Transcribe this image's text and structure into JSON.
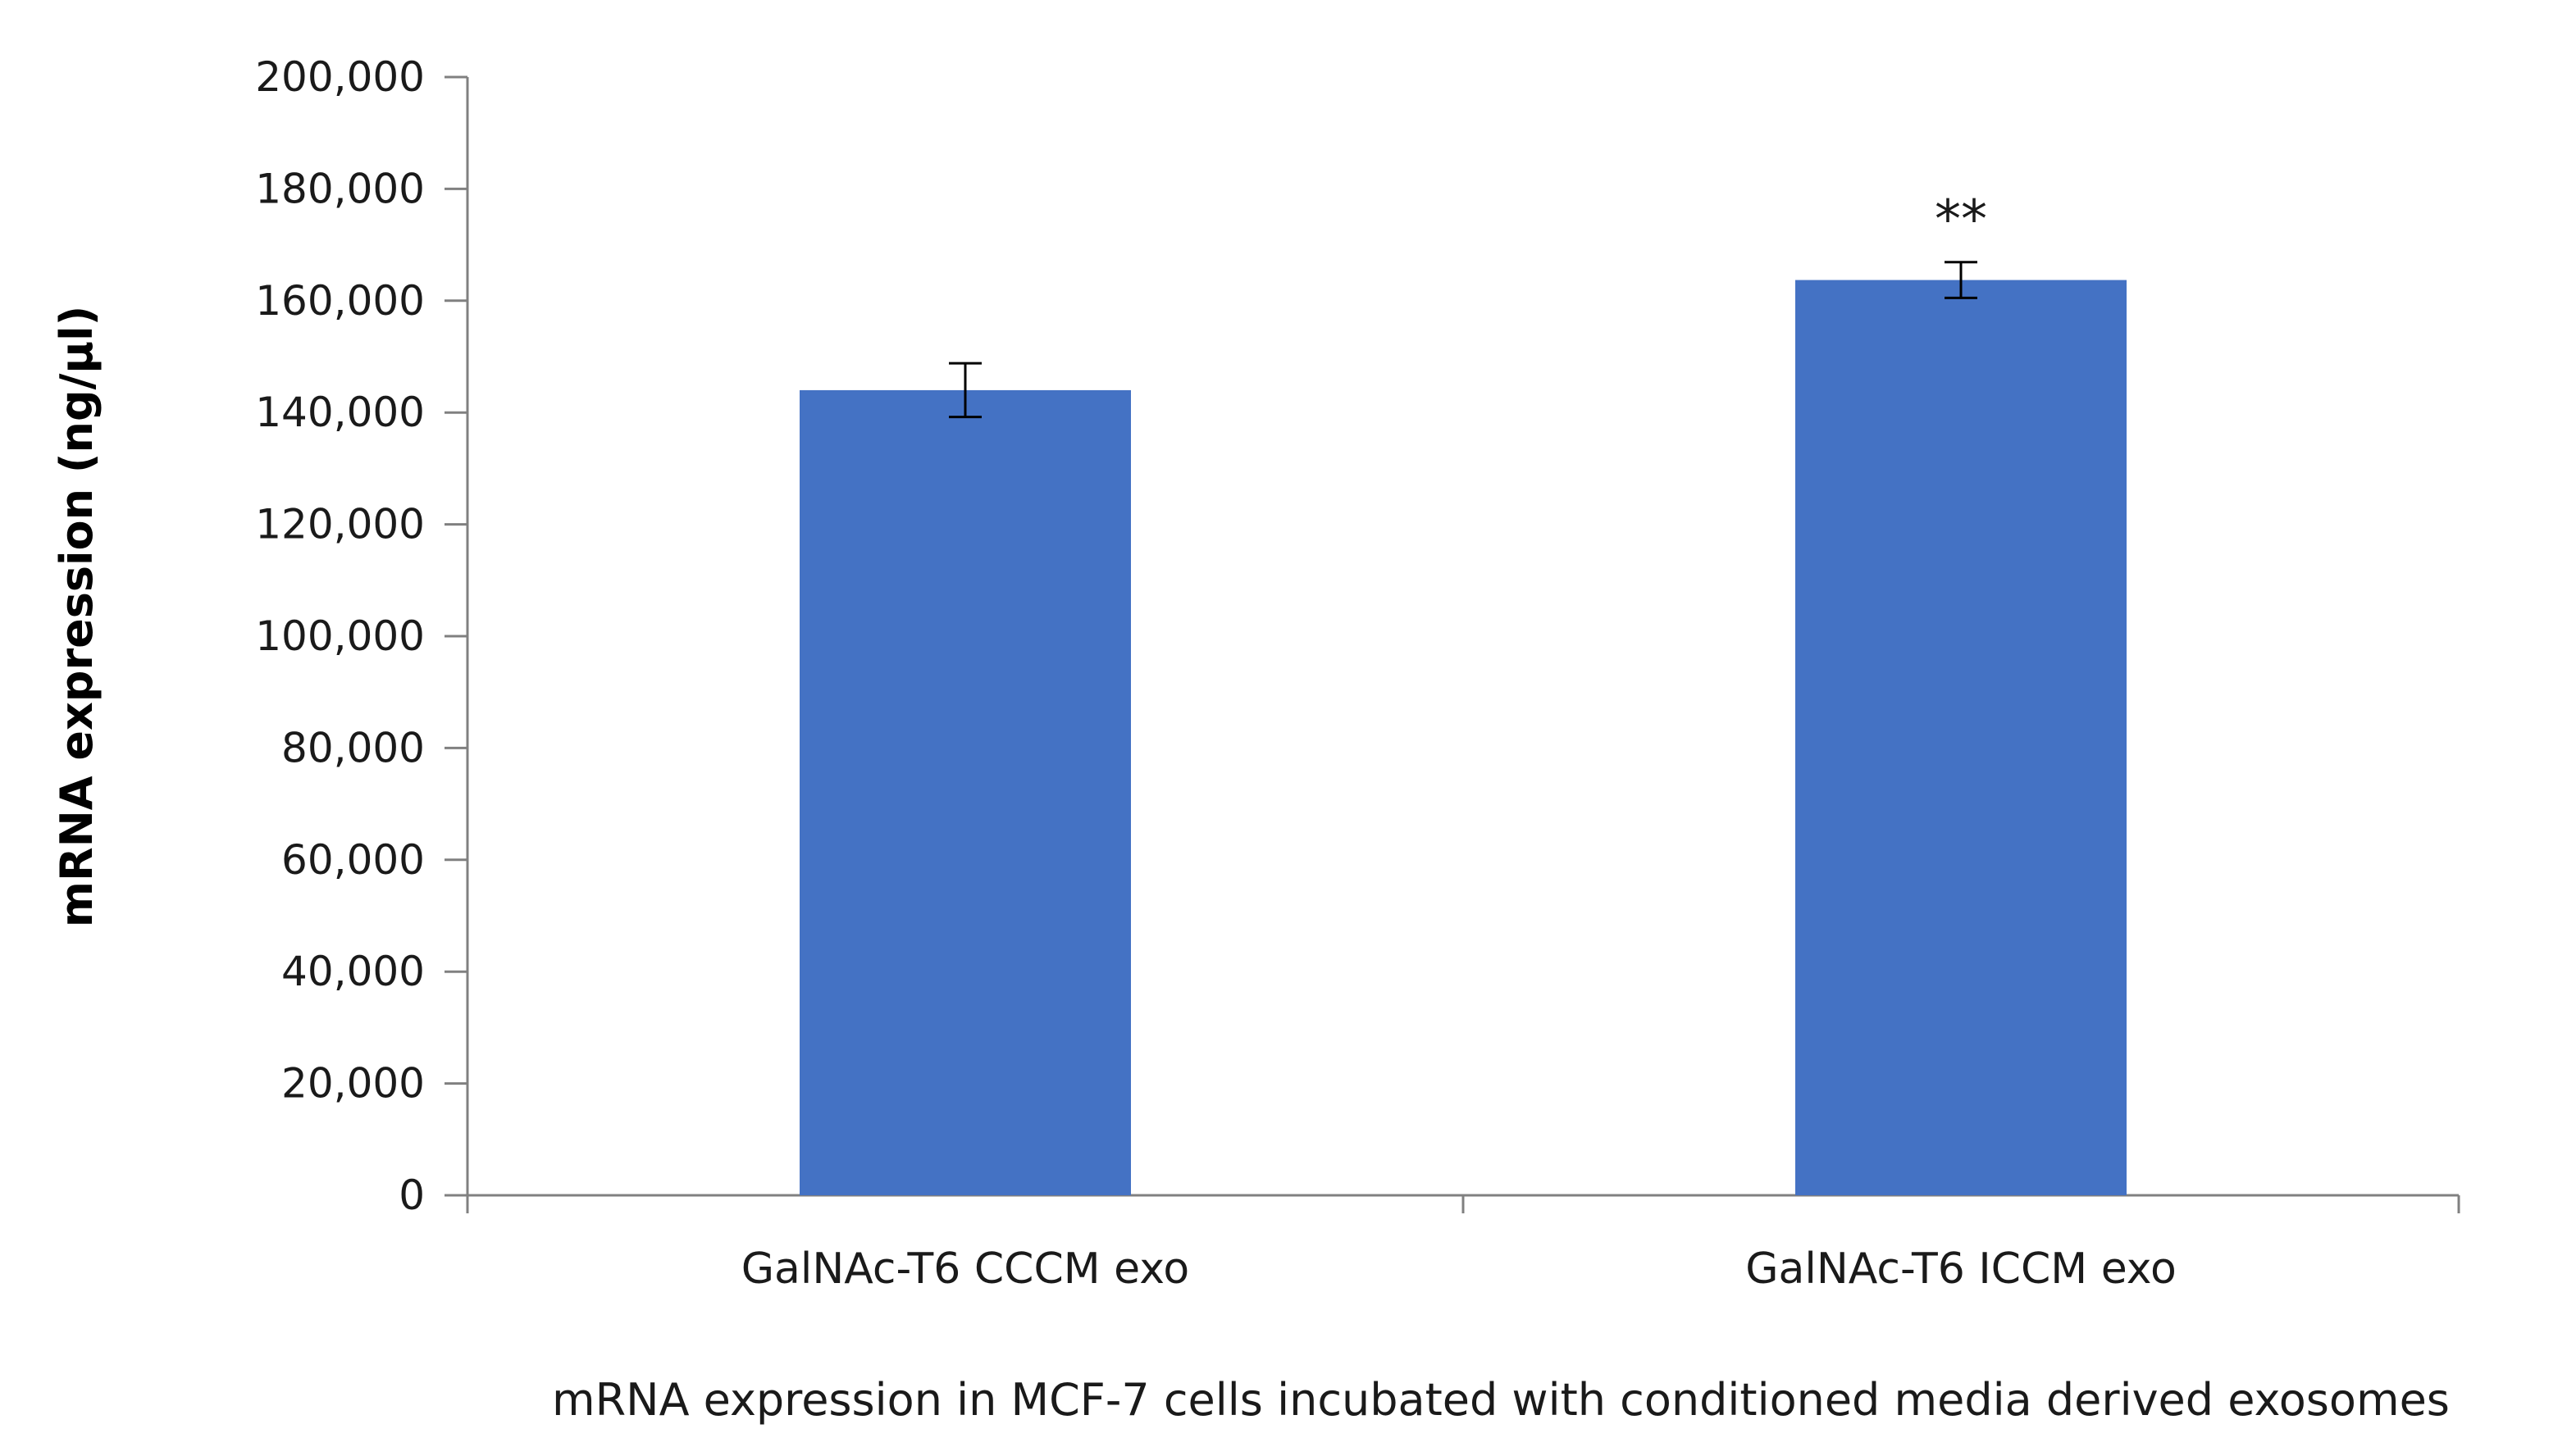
{
  "chart_data": {
    "type": "bar",
    "title": "",
    "categories": [
      "GalNAc-T6 CCCM exo",
      "GalNAc-T6 ICCM exo"
    ],
    "values": [
      144000,
      163700
    ],
    "errors": [
      4800,
      3200
    ],
    "annotations": [
      "",
      "**"
    ],
    "ylim": [
      0,
      200000
    ],
    "yticks": [
      0,
      20000,
      40000,
      60000,
      80000,
      100000,
      120000,
      140000,
      160000,
      180000,
      200000
    ],
    "ytick_labels": [
      "0",
      "20,000",
      "40,000",
      "60,000",
      "80,000",
      "100,000",
      "120,000",
      "140,000",
      "160,000",
      "180,000",
      "200,000"
    ],
    "xlabel": "mRNA expression in MCF-7 cells incubated with conditioned media derived exosomes",
    "ylabel": "mRNA expression (ng/µl)",
    "grid": false,
    "bar_color": "#4472C4",
    "axis_color": "#808080"
  }
}
